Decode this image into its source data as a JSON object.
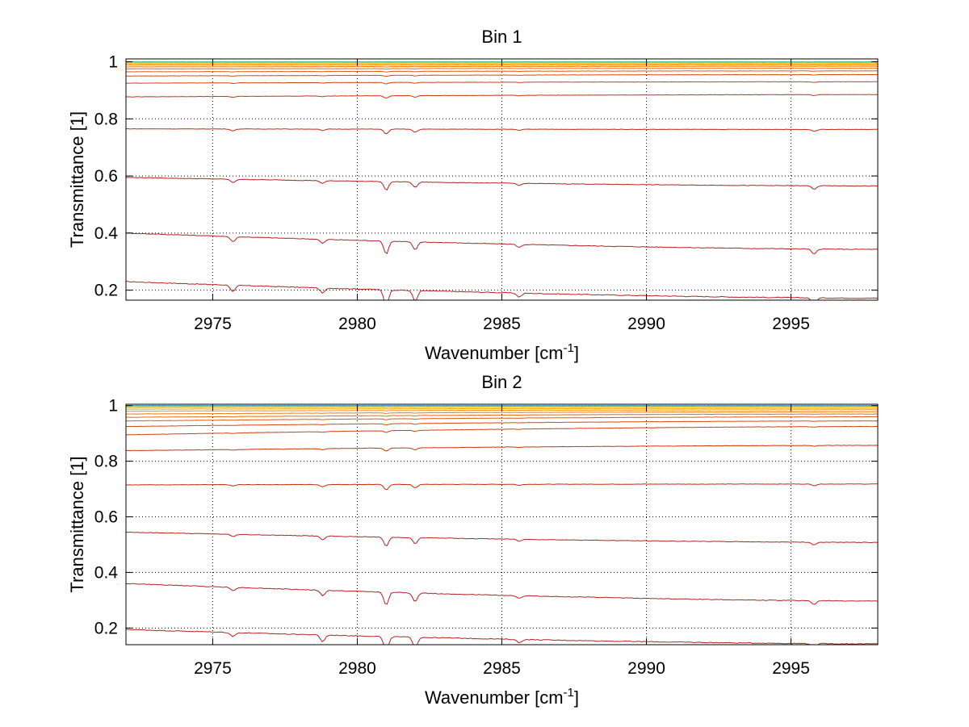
{
  "chart_data": [
    {
      "type": "line",
      "title": "Bin 1",
      "xlabel": "Wavenumber [cm",
      "xlabel_sup": "-1",
      "xlabel_close": "]",
      "ylabel": "Transmittance [1]",
      "xlim": [
        2972,
        2998
      ],
      "ylim": [
        0.165,
        1.01
      ],
      "xticks": [
        2975,
        2980,
        2985,
        2990,
        2995
      ],
      "yticks": [
        0.2,
        0.4,
        0.6,
        0.8,
        1
      ],
      "ytick_labels": [
        "0.2",
        "0.4",
        "0.6",
        "0.8",
        "1"
      ],
      "grid": true,
      "absorption_lines": [
        {
          "x": 2975.7,
          "strength": 1.0
        },
        {
          "x": 2978.8,
          "strength": 0.8
        },
        {
          "x": 2981.0,
          "strength": 2.5
        },
        {
          "x": 2982.0,
          "strength": 1.6
        },
        {
          "x": 2985.6,
          "strength": 0.6
        },
        {
          "x": 2995.8,
          "strength": 1.0
        }
      ],
      "series": [
        {
          "start": 0.23,
          "end": 0.172,
          "color": "#b22222"
        },
        {
          "start": 0.4,
          "end": 0.343,
          "color": "#b22222"
        },
        {
          "start": 0.595,
          "end": 0.565,
          "color": "#b22222"
        },
        {
          "start": 0.765,
          "end": 0.763,
          "color": "#c02a10"
        },
        {
          "start": 0.877,
          "end": 0.885,
          "color": "#c8350c"
        },
        {
          "start": 0.925,
          "end": 0.93,
          "color": "#d04010"
        },
        {
          "start": 0.95,
          "end": 0.955,
          "color": "#d84a10"
        },
        {
          "start": 0.965,
          "end": 0.968,
          "color": "#e05a10"
        },
        {
          "start": 0.975,
          "end": 0.977,
          "color": "#e86a10"
        },
        {
          "start": 0.982,
          "end": 0.984,
          "color": "#f07a10"
        },
        {
          "start": 0.988,
          "end": 0.989,
          "color": "#f59010"
        },
        {
          "start": 0.992,
          "end": 0.993,
          "color": "#f8a810"
        },
        {
          "start": 0.995,
          "end": 0.996,
          "color": "#fbc010"
        },
        {
          "start": 0.997,
          "end": 0.998,
          "color": "#e0d020"
        },
        {
          "start": 0.999,
          "end": 0.999,
          "color": "#a0d040"
        },
        {
          "start": 1.0,
          "end": 1.0,
          "color": "#40c0a0"
        }
      ]
    },
    {
      "type": "line",
      "title": "Bin 2",
      "xlabel": "Wavenumber [cm",
      "xlabel_sup": "-1",
      "xlabel_close": "]",
      "ylabel": "Transmittance [1]",
      "xlim": [
        2972,
        2998
      ],
      "ylim": [
        0.14,
        1.005
      ],
      "xticks": [
        2975,
        2980,
        2985,
        2990,
        2995
      ],
      "yticks": [
        0.2,
        0.4,
        0.6,
        0.8,
        1
      ],
      "ytick_labels": [
        "0.2",
        "0.4",
        "0.6",
        "0.8",
        "1"
      ],
      "grid": true,
      "absorption_lines": [
        {
          "x": 2975.7,
          "strength": 0.6
        },
        {
          "x": 2978.8,
          "strength": 1.0
        },
        {
          "x": 2981.0,
          "strength": 2.4
        },
        {
          "x": 2982.0,
          "strength": 1.6
        },
        {
          "x": 2985.6,
          "strength": 0.5
        },
        {
          "x": 2995.8,
          "strength": 0.7
        }
      ],
      "series": [
        {
          "start": 0.195,
          "end": 0.143,
          "color": "#b22222"
        },
        {
          "start": 0.36,
          "end": 0.297,
          "color": "#b22222"
        },
        {
          "start": 0.545,
          "end": 0.508,
          "color": "#b22222"
        },
        {
          "start": 0.715,
          "end": 0.718,
          "color": "#c02a10"
        },
        {
          "start": 0.838,
          "end": 0.857,
          "color": "#c8350c"
        },
        {
          "start": 0.895,
          "end": 0.925,
          "color": "#d04010"
        },
        {
          "start": 0.925,
          "end": 0.945,
          "color": "#d84a10"
        },
        {
          "start": 0.945,
          "end": 0.96,
          "color": "#e05a10"
        },
        {
          "start": 0.958,
          "end": 0.97,
          "color": "#e86a10"
        },
        {
          "start": 0.97,
          "end": 0.978,
          "color": "#f07a10"
        },
        {
          "start": 0.98,
          "end": 0.985,
          "color": "#f59010"
        },
        {
          "start": 0.987,
          "end": 0.99,
          "color": "#f8a810"
        },
        {
          "start": 0.992,
          "end": 0.994,
          "color": "#fbc010"
        },
        {
          "start": 0.996,
          "end": 0.997,
          "color": "#e0d020"
        },
        {
          "start": 0.998,
          "end": 0.998,
          "color": "#a0d040"
        },
        {
          "start": 1.0,
          "end": 1.0,
          "color": "#2090c0"
        }
      ]
    }
  ]
}
